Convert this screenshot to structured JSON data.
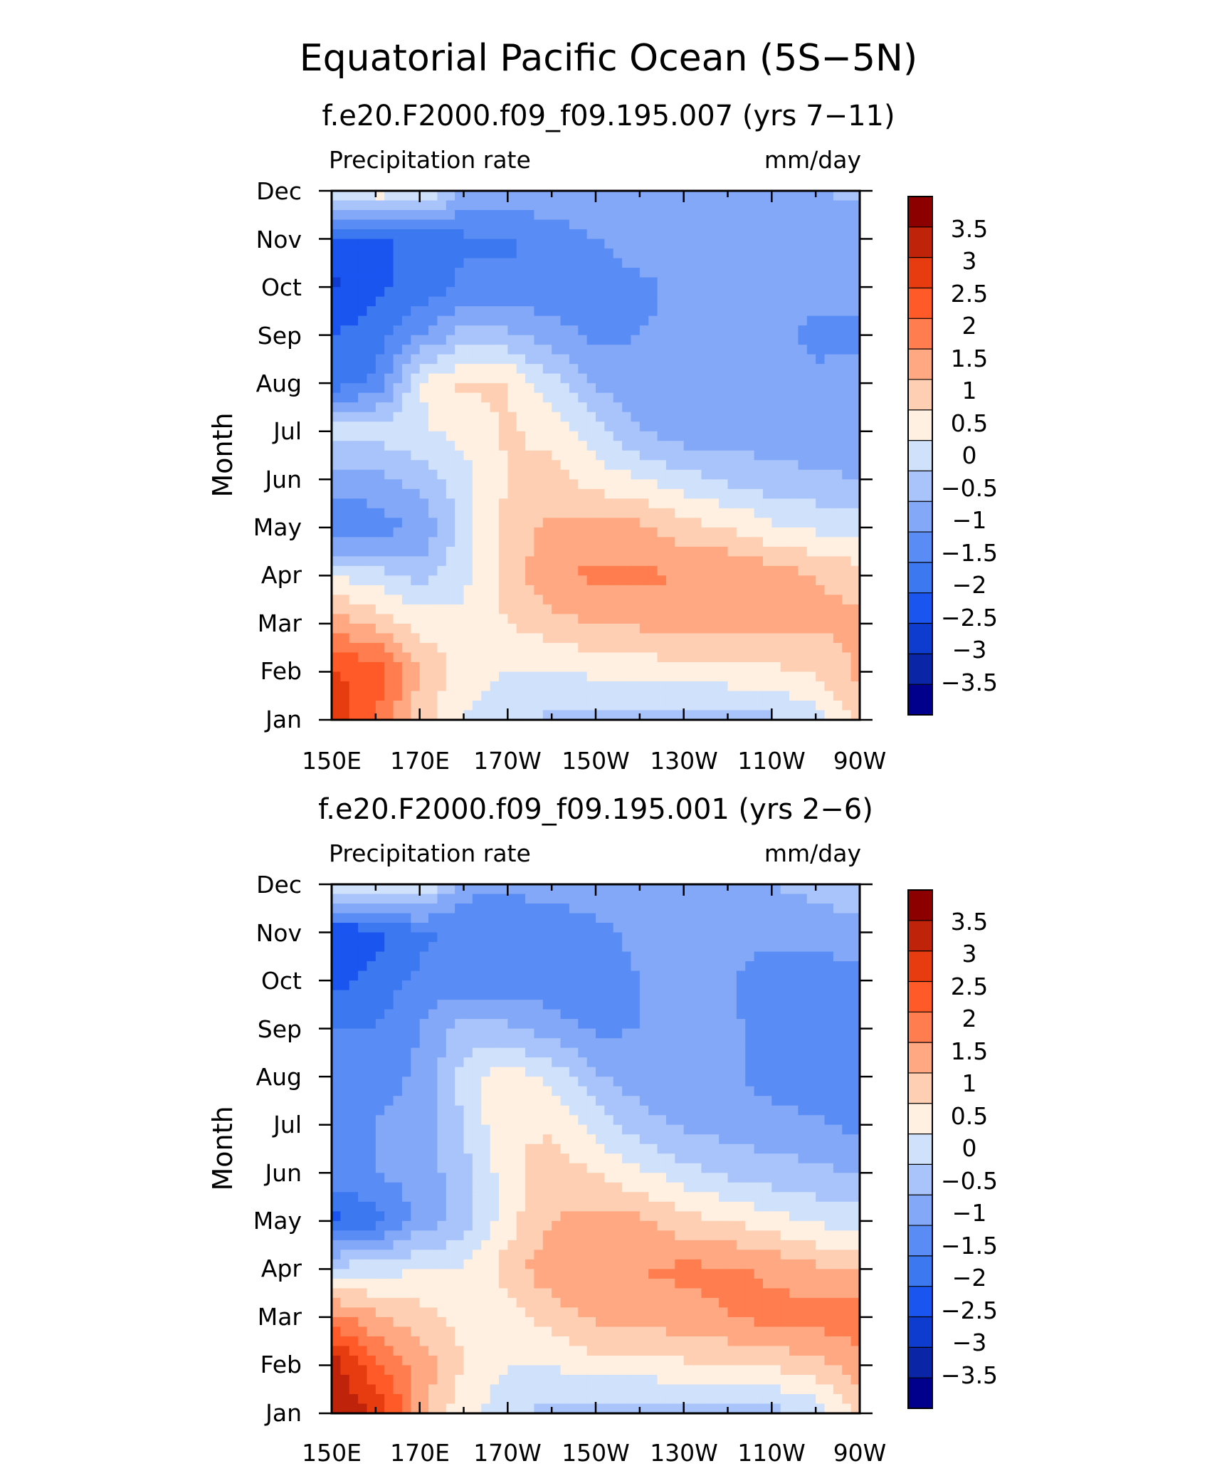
{
  "title": "Equatorial Pacific Ocean (5S−5N)",
  "colorbar": {
    "colors": [
      "#00008c",
      "#0a26a6",
      "#0d3ccf",
      "#1a55f0",
      "#3c78f0",
      "#5a8cf5",
      "#82a8f7",
      "#a8c4fa",
      "#cfe1fb",
      "#fff0e1",
      "#ffcfb4",
      "#ffa882",
      "#ff7d4f",
      "#ff5a28",
      "#e63c0f",
      "#bf230a",
      "#8c0000"
    ],
    "tick_labels": [
      "−3.5",
      "−3",
      "−2.5",
      "−2",
      "−1.5",
      "−1",
      "−0.5",
      "0",
      "0.5",
      "1",
      "1.5",
      "2",
      "2.5",
      "3",
      "3.5"
    ]
  },
  "chart_data": [
    {
      "type": "heatmap",
      "title": "f.e20.F2000.f09_f09.195.007 (yrs 7−11)",
      "variable_label": "Precipitation rate",
      "units_label": "mm/day",
      "ylabel": "Month",
      "x_ticks": [
        "150E",
        "170E",
        "170W",
        "150W",
        "130W",
        "110W",
        "90W"
      ],
      "y_ticks": [
        "Jan",
        "Feb",
        "Mar",
        "Apr",
        "May",
        "Jun",
        "Jul",
        "Aug",
        "Sep",
        "Oct",
        "Nov",
        "Dec"
      ],
      "lon_range_deg_east": [
        150,
        270
      ],
      "levels": [
        -3.5,
        -3,
        -2.5,
        -2,
        -1.5,
        -1,
        -0.5,
        0,
        0.5,
        1,
        1.5,
        2,
        2.5,
        3,
        3.5
      ],
      "lon": [
        150,
        160,
        170,
        180,
        190,
        200,
        210,
        220,
        230,
        240,
        250,
        260,
        270
      ],
      "month": [
        1,
        2,
        3,
        4,
        5,
        6,
        7,
        8,
        9,
        10,
        11,
        12
      ],
      "values": [
        [
          3.5,
          2.5,
          1.2,
          0.5,
          0.1,
          -0.1,
          -0.2,
          -0.3,
          -0.2,
          -0.2,
          -0.1,
          0.2,
          1.2
        ],
        [
          3.0,
          2.8,
          1.5,
          0.8,
          0.5,
          0.5,
          0.6,
          0.7,
          0.8,
          0.8,
          0.9,
          1.1,
          1.6
        ],
        [
          1.8,
          1.4,
          0.8,
          0.6,
          1.0,
          1.3,
          1.5,
          1.6,
          1.6,
          1.6,
          1.6,
          1.6,
          1.6
        ],
        [
          0.5,
          0.2,
          -0.2,
          0.4,
          1.2,
          1.9,
          2.1,
          2.1,
          2.0,
          2.0,
          1.8,
          1.5,
          1.3
        ],
        [
          -1.5,
          -1.2,
          -1.0,
          0.2,
          1.2,
          1.6,
          1.7,
          1.6,
          1.2,
          1.0,
          0.6,
          0.4,
          0.2
        ],
        [
          -0.8,
          -0.7,
          -0.3,
          0.3,
          1.0,
          1.2,
          0.8,
          0.5,
          0.2,
          -0.1,
          -0.3,
          -0.4,
          -0.5
        ],
        [
          0.3,
          0.2,
          0.4,
          0.7,
          1.1,
          0.8,
          0.2,
          -0.5,
          -0.8,
          -0.8,
          -0.8,
          -0.9,
          -1.0
        ],
        [
          -1.8,
          -1.4,
          0.5,
          1.1,
          1.0,
          0.2,
          -0.6,
          -0.9,
          -0.9,
          -0.9,
          -0.9,
          -0.9,
          -1.0
        ],
        [
          -2.0,
          -1.8,
          -1.0,
          -0.3,
          -0.4,
          -0.8,
          -1.1,
          -1.0,
          -0.9,
          -0.9,
          -0.9,
          -1.1,
          -1.0
        ],
        [
          -2.6,
          -2.1,
          -1.8,
          -1.4,
          -1.4,
          -1.3,
          -1.2,
          -1.1,
          -0.9,
          -0.9,
          -0.9,
          -0.9,
          -1.0
        ],
        [
          -2.3,
          -2.0,
          -2.0,
          -1.6,
          -1.6,
          -1.2,
          -1.0,
          -0.8,
          -0.8,
          -0.8,
          -0.8,
          -0.8,
          -0.8
        ],
        [
          0.6,
          0.8,
          0.7,
          -0.5,
          -0.6,
          -0.7,
          -0.8,
          -0.8,
          -0.8,
          -0.8,
          -0.6,
          -0.5,
          -0.4
        ]
      ]
    },
    {
      "type": "heatmap",
      "title": "f.e20.F2000.f09_f09.195.001 (yrs 2−6)",
      "variable_label": "Precipitation rate",
      "units_label": "mm/day",
      "ylabel": "Month",
      "x_ticks": [
        "150E",
        "170E",
        "170W",
        "150W",
        "130W",
        "110W",
        "90W"
      ],
      "y_ticks": [
        "Jan",
        "Feb",
        "Mar",
        "Apr",
        "May",
        "Jun",
        "Jul",
        "Aug",
        "Sep",
        "Oct",
        "Nov",
        "Dec"
      ],
      "lon_range_deg_east": [
        150,
        270
      ],
      "levels": [
        -3.5,
        -3,
        -2.5,
        -2,
        -1.5,
        -1,
        -0.5,
        0,
        0.5,
        1,
        1.5,
        2,
        2.5,
        3,
        3.5
      ],
      "lon": [
        150,
        160,
        170,
        180,
        190,
        200,
        210,
        220,
        230,
        240,
        250,
        260,
        270
      ],
      "month": [
        1,
        2,
        3,
        4,
        5,
        6,
        7,
        8,
        9,
        10,
        11,
        12
      ],
      "values": [
        [
          3.8,
          3.5,
          1.8,
          0.6,
          0.2,
          -0.2,
          -0.2,
          -0.3,
          -0.3,
          -0.3,
          -0.2,
          0.2,
          1.2
        ],
        [
          3.8,
          2.6,
          1.8,
          1.0,
          0.5,
          0.5,
          0.8,
          0.8,
          0.9,
          1.0,
          1.1,
          1.3,
          1.8
        ],
        [
          2.2,
          1.6,
          1.2,
          0.8,
          0.8,
          1.2,
          1.6,
          1.7,
          1.8,
          2.0,
          2.2,
          2.2,
          2.4
        ],
        [
          0.2,
          0.3,
          0.5,
          0.6,
          1.2,
          1.9,
          2.0,
          2.0,
          2.1,
          2.1,
          1.9,
          1.6,
          1.4
        ],
        [
          -2.2,
          -1.8,
          -0.8,
          -0.3,
          0.8,
          1.5,
          1.7,
          1.6,
          1.2,
          1.0,
          0.7,
          0.4,
          0.2
        ],
        [
          -1.2,
          -1.0,
          -0.8,
          -0.2,
          0.8,
          1.3,
          1.0,
          0.6,
          0.2,
          -0.1,
          -0.3,
          -0.4,
          -0.5
        ],
        [
          -1.3,
          -1.0,
          -0.8,
          0.0,
          1.0,
          0.9,
          0.3,
          -0.3,
          -0.6,
          -0.7,
          -0.8,
          -0.9,
          -1.2
        ],
        [
          -1.5,
          -1.2,
          -0.9,
          0.2,
          0.8,
          0.4,
          -0.4,
          -0.8,
          -0.9,
          -0.9,
          -1.2,
          -1.4,
          -1.3
        ],
        [
          -1.5,
          -1.5,
          -1.0,
          -0.3,
          -0.4,
          -0.8,
          -1.1,
          -1.0,
          -0.9,
          -0.9,
          -1.2,
          -1.4,
          -1.2
        ],
        [
          -2.2,
          -1.8,
          -1.4,
          -1.3,
          -1.3,
          -1.3,
          -1.2,
          -1.0,
          -0.9,
          -0.9,
          -1.4,
          -1.4,
          -1.2
        ],
        [
          -2.4,
          -2.2,
          -1.6,
          -1.4,
          -1.4,
          -1.3,
          -1.1,
          -0.9,
          -0.8,
          -0.8,
          -0.8,
          -0.7,
          -0.6
        ],
        [
          0.6,
          0.8,
          0.6,
          -0.8,
          -0.9,
          -0.8,
          -0.8,
          -0.7,
          -0.7,
          -0.6,
          -0.5,
          -0.4,
          -0.3
        ]
      ]
    }
  ]
}
